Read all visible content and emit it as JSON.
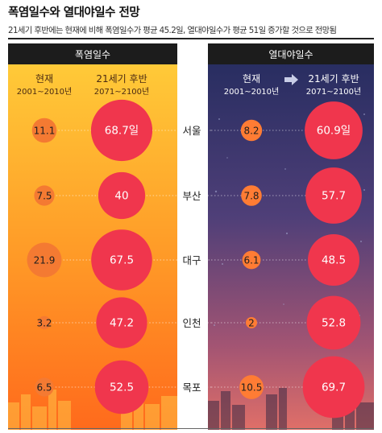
{
  "header": {
    "title": "폭염일수와 열대야일수 전망",
    "subtitle": "21세기 후반에는 현재에 비해 폭염일수가 평균 45.2일, 열대야일수가 평균 51일 증가할 것으로 전망됨"
  },
  "colors": {
    "panel_left_top": "#ffcf3a",
    "panel_left_bottom": "#ff6f1c",
    "panel_right_top": "#262f63",
    "panel_right_bottom": "#d7686a",
    "panel_header_bg": "#1c1c1c",
    "future_bubble": "#f0364d",
    "current_bubble": "#f47a32",
    "current_bubble_right": "#ff7c34"
  },
  "chart_data": [
    {
      "type": "bubble",
      "panel_title": "폭염일수",
      "column_headers": [
        {
          "label": "현재",
          "period": "2001~2010년"
        },
        {
          "label": "21세기 후반",
          "period": "2071~2100년"
        }
      ],
      "categories": [
        "서울",
        "부산",
        "대구",
        "인천",
        "목포"
      ],
      "series": [
        {
          "name": "현재 2001~2010년",
          "values": [
            11.1,
            7.5,
            21.9,
            3.2,
            6.5
          ],
          "labels": [
            "11.1",
            "7.5",
            "21.9",
            "3.2",
            "6.5"
          ]
        },
        {
          "name": "21세기 후반 2071~2100년",
          "values": [
            68.7,
            40,
            67.5,
            47.2,
            52.5
          ],
          "labels": [
            "68.7일",
            "40",
            "67.5",
            "47.2",
            "52.5"
          ]
        }
      ]
    },
    {
      "type": "bubble",
      "panel_title": "열대야일수",
      "column_headers": [
        {
          "label": "현재",
          "period": "2001~2010년"
        },
        {
          "label": "21세기 후반",
          "period": "2071~2100년"
        }
      ],
      "categories": [
        "서울",
        "부산",
        "대구",
        "인천",
        "목포"
      ],
      "series": [
        {
          "name": "현재 2001~2010년",
          "values": [
            8.2,
            7.8,
            6.1,
            2,
            10.5
          ],
          "labels": [
            "8.2",
            "7.8",
            "6.1",
            "2",
            "10.5"
          ]
        },
        {
          "name": "21세기 후반 2071~2100년",
          "values": [
            60.9,
            57.7,
            48.5,
            52.8,
            69.7
          ],
          "labels": [
            "60.9일",
            "57.7",
            "48.5",
            "52.8",
            "69.7"
          ]
        }
      ]
    }
  ]
}
